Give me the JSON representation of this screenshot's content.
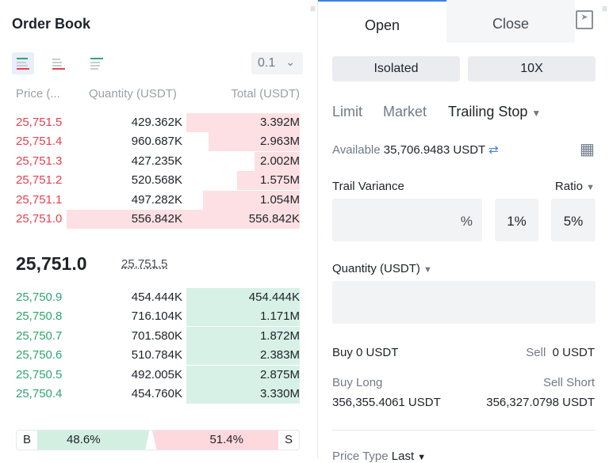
{
  "order_book": {
    "title": "Order Book",
    "precision": "0.1",
    "headers": {
      "price": "Price (...",
      "quantity": "Quantity (USDT)",
      "total": "Total (USDT)"
    },
    "asks": [
      {
        "price": "25,751.5",
        "quantity": "429.362K",
        "total": "3.392M",
        "depth": 0.4
      },
      {
        "price": "25,751.4",
        "quantity": "960.687K",
        "total": "2.963M",
        "depth": 0.32
      },
      {
        "price": "25,751.3",
        "quantity": "427.235K",
        "total": "2.002M",
        "depth": 0.16
      },
      {
        "price": "25,751.2",
        "quantity": "520.568K",
        "total": "1.575M",
        "depth": 0.22
      },
      {
        "price": "25,751.1",
        "quantity": "497.282K",
        "total": "1.054M",
        "depth": 0.34
      },
      {
        "price": "25,751.0",
        "quantity": "556.842K",
        "total": "556.842K",
        "depth": 0.82
      }
    ],
    "last_price": "25,751.0",
    "mark_price": "25,751.5",
    "bids": [
      {
        "price": "25,750.9",
        "quantity": "454.444K",
        "total": "454.444K",
        "depth": 0.4
      },
      {
        "price": "25,750.8",
        "quantity": "716.104K",
        "total": "1.171M",
        "depth": 0.4
      },
      {
        "price": "25,750.7",
        "quantity": "701.580K",
        "total": "1.872M",
        "depth": 0.4
      },
      {
        "price": "25,750.6",
        "quantity": "510.784K",
        "total": "2.383M",
        "depth": 0.4
      },
      {
        "price": "25,750.5",
        "quantity": "492.005K",
        "total": "2.875M",
        "depth": 0.4
      },
      {
        "price": "25,750.4",
        "quantity": "454.760K",
        "total": "3.330M",
        "depth": 0.4
      }
    ],
    "buy_label": "B",
    "buy_pct": "48.6%",
    "sell_label": "S",
    "sell_pct": "51.4%"
  },
  "trade": {
    "tabs": [
      "Open",
      "Close"
    ],
    "margin_mode": "Isolated",
    "leverage": "10X",
    "order_types": [
      "Limit",
      "Market",
      "Trailing Stop"
    ],
    "available_label": "Available",
    "available_value": "35,706.9483 USDT",
    "trail_variance_label": "Trail Variance",
    "ratio_label": "Ratio",
    "percent_unit": "%",
    "preset1": "1%",
    "preset2": "5%",
    "quantity_label": "Quantity (USDT)",
    "buy": "Buy 0 USDT",
    "sell": "Sell",
    "sell_value": "0 USDT",
    "buy_long_label": "Buy Long",
    "buy_long_value": "356,355.4061 USDT",
    "sell_short_label": "Sell Short",
    "sell_short_value": "356,327.0798 USDT",
    "price_type_label": "Price Type",
    "price_type_value": "Last"
  },
  "colors": {
    "ask": "#e6414f",
    "bid": "#2ea66f",
    "accent": "#3d7ef5"
  }
}
